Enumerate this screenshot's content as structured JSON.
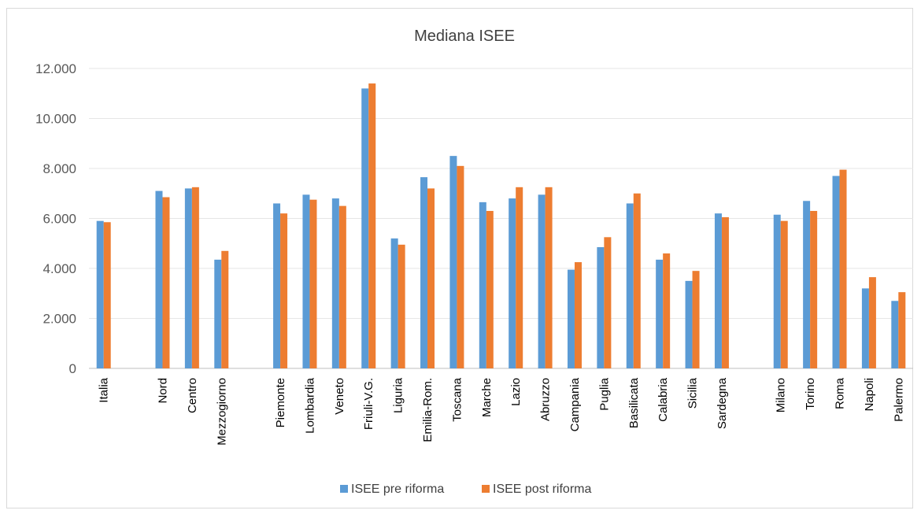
{
  "chart_data": {
    "type": "bar",
    "title": "Mediana ISEE",
    "xlabel": "",
    "ylabel": "",
    "ylim": [
      0,
      12000
    ],
    "yticks": [
      0,
      2000,
      4000,
      6000,
      8000,
      10000,
      12000
    ],
    "ytick_labels": [
      "0",
      "2.000",
      "4.000",
      "6.000",
      "8.000",
      "10.000",
      "12.000"
    ],
    "grid": true,
    "legend_position": "bottom",
    "categories": [
      "Italia",
      "",
      "Nord",
      "Centro",
      "Mezzogiorno",
      "",
      "Piemonte",
      "Lombardia",
      "Veneto",
      "Friuli-V.G.",
      "Liguria",
      "Emilia-Rom.",
      "Toscana",
      "Marche",
      "Lazio",
      "Abruzzo",
      "Campania",
      "Puglia",
      "Basilicata",
      "Calabria",
      "Sicilia",
      "Sardegna",
      "",
      "Milano",
      "Torino",
      "Roma",
      "Napoli",
      "Palermo"
    ],
    "series": [
      {
        "name": "ISEE pre riforma",
        "color": "#5b9bd5",
        "values": [
          5900,
          null,
          7100,
          7200,
          4350,
          null,
          6600,
          6950,
          6800,
          11200,
          5200,
          7650,
          8500,
          6650,
          6800,
          6950,
          3950,
          4850,
          6600,
          4350,
          3500,
          6200,
          null,
          6150,
          6700,
          7700,
          3200,
          2700
        ]
      },
      {
        "name": "ISEE post riforma",
        "color": "#ed7d31",
        "values": [
          5850,
          null,
          6850,
          7250,
          4700,
          null,
          6200,
          6750,
          6500,
          11400,
          4950,
          7200,
          8100,
          6300,
          7250,
          7250,
          4250,
          5250,
          7000,
          4600,
          3900,
          6050,
          null,
          5900,
          6300,
          7950,
          3650,
          3050
        ]
      }
    ]
  },
  "top_cut_text": "                 "
}
